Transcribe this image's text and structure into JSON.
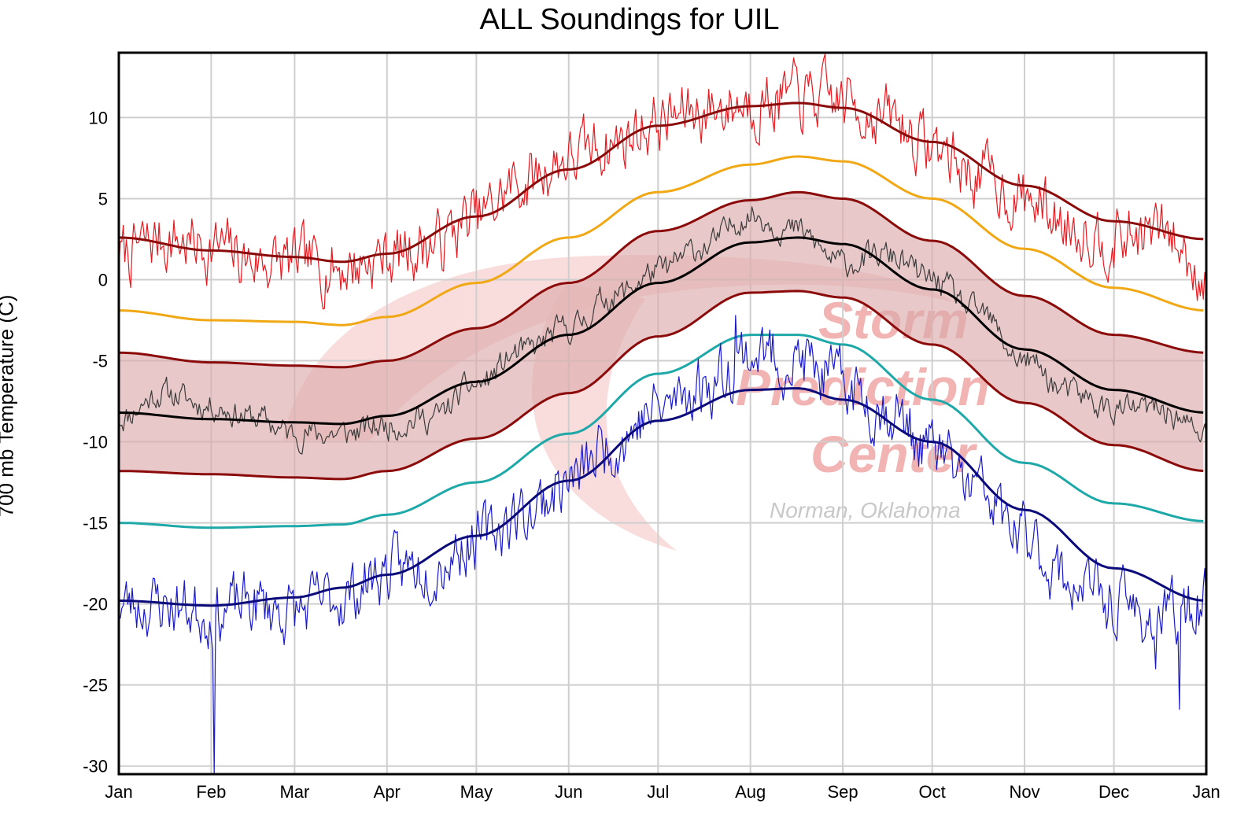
{
  "chart_data": {
    "type": "line",
    "title": "ALL Soundings for UIL",
    "xlabel": "",
    "ylabel": "700 mb Temperature (C)",
    "ylim": [
      -30.5,
      14
    ],
    "yticks": [
      10,
      5,
      0,
      -5,
      -10,
      -15,
      -20,
      -25,
      -30
    ],
    "xlim": [
      0,
      365
    ],
    "xticks": [
      {
        "label": "Jan",
        "day": 0
      },
      {
        "label": "Feb",
        "day": 31
      },
      {
        "label": "Mar",
        "day": 59
      },
      {
        "label": "Apr",
        "day": 90
      },
      {
        "label": "May",
        "day": 120
      },
      {
        "label": "Jun",
        "day": 151
      },
      {
        "label": "Jul",
        "day": 181
      },
      {
        "label": "Aug",
        "day": 212
      },
      {
        "label": "Sep",
        "day": 243
      },
      {
        "label": "Oct",
        "day": 273
      },
      {
        "label": "Nov",
        "day": 304
      },
      {
        "label": "Dec",
        "day": 334
      },
      {
        "label": "Jan",
        "day": 365
      }
    ],
    "grid": true,
    "band": {
      "name": "±1 std dev",
      "lower": "minus_1sd",
      "upper": "plus_1sd",
      "color": "#dcaaaa"
    },
    "series": [
      {
        "name": "record_max",
        "color": "#e8191f",
        "width": 1.2,
        "style": "noisy",
        "days": [
          0,
          15,
          31,
          45,
          59,
          75,
          90,
          105,
          120,
          135,
          151,
          166,
          181,
          196,
          212,
          227,
          243,
          258,
          273,
          288,
          304,
          319,
          334,
          349,
          365
        ],
        "values": [
          1.5,
          2.5,
          2.0,
          1.2,
          1.0,
          0.8,
          1.5,
          2.2,
          3.8,
          6.0,
          7.5,
          8.5,
          9.8,
          10.5,
          11.0,
          11.2,
          11.0,
          10.0,
          8.2,
          6.5,
          5.0,
          3.5,
          2.5,
          3.0,
          0.5
        ],
        "amp": 1.6,
        "seed": 7
      },
      {
        "name": "max_moving_avg",
        "color": "#8b0a0a",
        "width": 3,
        "style": "smooth",
        "days": [
          0,
          31,
          59,
          75,
          90,
          120,
          151,
          181,
          212,
          228,
          243,
          273,
          304,
          334,
          365
        ],
        "values": [
          2.6,
          1.8,
          1.4,
          1.1,
          1.6,
          3.9,
          6.8,
          9.5,
          10.7,
          10.9,
          10.6,
          8.5,
          5.8,
          3.6,
          2.5
        ]
      },
      {
        "name": "percentile_90",
        "color": "#f0a814",
        "width": 3,
        "style": "smooth",
        "days": [
          0,
          31,
          59,
          75,
          90,
          120,
          151,
          181,
          212,
          228,
          243,
          273,
          304,
          334,
          365
        ],
        "values": [
          -1.9,
          -2.5,
          -2.6,
          -2.8,
          -2.3,
          -0.2,
          2.6,
          5.4,
          7.1,
          7.6,
          7.3,
          5.0,
          1.9,
          -0.5,
          -1.9
        ]
      },
      {
        "name": "plus_1sd",
        "color": "#8b0a0a",
        "width": 3,
        "style": "smooth",
        "days": [
          0,
          31,
          59,
          75,
          90,
          120,
          151,
          181,
          212,
          228,
          243,
          273,
          304,
          334,
          365
        ],
        "values": [
          -4.5,
          -5.1,
          -5.3,
          -5.4,
          -5.0,
          -3.0,
          -0.2,
          3.0,
          4.9,
          5.4,
          5.0,
          2.4,
          -1.0,
          -3.4,
          -4.5
        ]
      },
      {
        "name": "observed",
        "color": "#3c3c3c",
        "width": 1.2,
        "style": "noisy",
        "days": [
          0,
          15,
          31,
          45,
          59,
          75,
          90,
          105,
          120,
          135,
          151,
          166,
          181,
          196,
          212,
          227,
          243,
          258,
          273,
          288,
          304,
          319,
          334,
          349,
          365
        ],
        "values": [
          -8.5,
          -7.0,
          -7.8,
          -8.5,
          -9.5,
          -9.5,
          -9.0,
          -8.5,
          -6.5,
          -4.5,
          -3.0,
          -1.0,
          0.5,
          2.0,
          4.0,
          3.0,
          1.0,
          1.5,
          0.0,
          -2.0,
          -5.0,
          -7.0,
          -8.0,
          -8.0,
          -9.5
        ],
        "amp": 0.7,
        "seed": 11
      },
      {
        "name": "mean",
        "color": "#000000",
        "width": 3,
        "style": "smooth",
        "days": [
          0,
          31,
          59,
          75,
          90,
          120,
          151,
          181,
          212,
          228,
          243,
          273,
          304,
          334,
          365
        ],
        "values": [
          -8.2,
          -8.6,
          -8.8,
          -8.9,
          -8.4,
          -6.3,
          -3.4,
          -0.2,
          2.3,
          2.6,
          2.2,
          -0.6,
          -4.3,
          -6.8,
          -8.2
        ]
      },
      {
        "name": "minus_1sd",
        "color": "#8b0a0a",
        "width": 3,
        "style": "smooth",
        "days": [
          0,
          31,
          59,
          75,
          90,
          120,
          151,
          181,
          212,
          228,
          243,
          273,
          304,
          334,
          365
        ],
        "values": [
          -11.8,
          -12.0,
          -12.2,
          -12.3,
          -11.8,
          -9.8,
          -7.0,
          -3.5,
          -0.8,
          -0.7,
          -1.1,
          -4.0,
          -7.6,
          -10.2,
          -11.8
        ]
      },
      {
        "name": "percentile_10",
        "color": "#1fa8a8",
        "width": 3,
        "style": "smooth",
        "days": [
          0,
          31,
          59,
          75,
          90,
          120,
          151,
          181,
          212,
          228,
          243,
          273,
          304,
          334,
          365
        ],
        "values": [
          -15.0,
          -15.3,
          -15.2,
          -15.1,
          -14.5,
          -12.5,
          -9.5,
          -5.8,
          -3.4,
          -3.4,
          -4.0,
          -7.4,
          -11.3,
          -13.8,
          -14.9
        ]
      },
      {
        "name": "record_min",
        "color": "#1a1acc",
        "width": 1.2,
        "style": "noisy",
        "days": [
          0,
          15,
          31,
          45,
          59,
          75,
          90,
          105,
          120,
          135,
          151,
          166,
          181,
          196,
          212,
          227,
          243,
          258,
          273,
          288,
          304,
          319,
          334,
          349,
          365
        ],
        "values": [
          -20.0,
          -20.0,
          -20.5,
          -20.0,
          -20.5,
          -19.5,
          -18.0,
          -17.5,
          -16.0,
          -14.5,
          -12.5,
          -10.0,
          -8.0,
          -6.5,
          -4.5,
          -5.0,
          -6.5,
          -8.0,
          -10.5,
          -13.0,
          -16.0,
          -18.5,
          -20.0,
          -21.0,
          -20.0
        ],
        "amp": 1.6,
        "seed": 23,
        "spikes": [
          {
            "day": 32,
            "value": -30.5
          },
          {
            "day": 356,
            "value": -26.5
          },
          {
            "day": 207,
            "value": -2.2
          },
          {
            "day": 348,
            "value": -24.0
          }
        ]
      },
      {
        "name": "min_moving_avg",
        "color": "#0a0a7a",
        "width": 3,
        "style": "smooth",
        "days": [
          0,
          31,
          59,
          75,
          90,
          120,
          151,
          181,
          212,
          228,
          243,
          273,
          304,
          334,
          365
        ],
        "values": [
          -19.8,
          -20.1,
          -19.6,
          -19.0,
          -18.2,
          -15.8,
          -12.4,
          -8.7,
          -6.8,
          -6.7,
          -7.4,
          -10.0,
          -14.2,
          -17.8,
          -19.8
        ]
      }
    ]
  },
  "watermark": {
    "lines": [
      "Storm",
      "Prediction",
      "Center"
    ],
    "location": "Norman, Oklahoma"
  }
}
